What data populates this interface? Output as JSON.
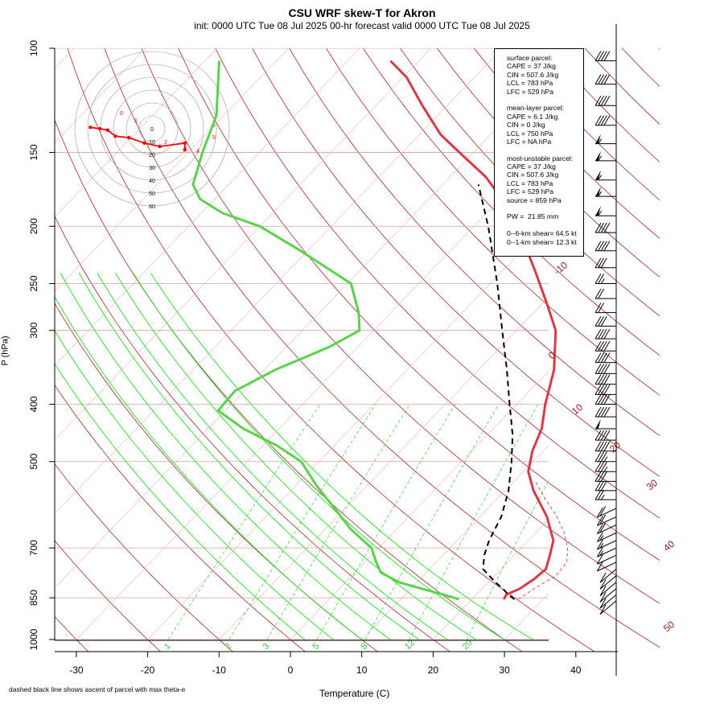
{
  "title": "CSU WRF skew-T for Akron",
  "subtitle": "init: 0000 UTC Tue 08 Jul 2025     00-hr forecast valid 0000 UTC Tue 08 Jul 2025",
  "footnote": "dashed black line shows ascent of parcel with max theta-e",
  "info_box": [
    "surface parcel:",
    "CAPE = 37 J/kg",
    "CIN = 507.6 J/kg",
    "LCL = 783 hPa",
    "LFC = 529 hPa",
    "",
    "mean-layer parcel:",
    "CAPE = 6.1 J/kg",
    "CIN = 0 J/kg",
    "LCL = 750 hPa",
    "LFC = NA hPa",
    "",
    "most-unstable parcel:",
    "CAPE = 37 J/kg",
    "CIN = 507.6 J/kg",
    "LCL = 783 hPa",
    "LFC = 529 hPa",
    "source = 859 hPa",
    "",
    "PW =  21.85 mm",
    "",
    "0--6-km shear= 64.5 kt",
    "0--1-km shear= 12.3 kt"
  ],
  "colors": {
    "temperature": "#d93a48",
    "dewpoint": "#5bd24e",
    "parcel": "#000000",
    "isobar": "#d9a0a0",
    "dry_adiabat": "#a01a1a",
    "moist_adiabat": "#22dd22",
    "mixing_ratio": "#33cc33",
    "isotherm": "#e7b4b4",
    "hodograph": "#ff0000"
  },
  "chart_data": {
    "type": "line",
    "xlabel": "Temperature (C)",
    "ylabel": "P (hPa)",
    "x_ticks": [
      -30,
      -20,
      -10,
      0,
      10,
      20,
      30,
      40
    ],
    "y_ticks": [
      100,
      150,
      200,
      250,
      300,
      400,
      500,
      700,
      850,
      1000
    ],
    "log_pressure_axis": true,
    "skew": true,
    "isotherm_labels": [
      -10,
      0,
      10,
      20,
      30,
      40,
      50
    ],
    "mixing_ratio_labels": [
      1,
      2,
      3,
      5,
      8,
      12,
      20
    ],
    "series": [
      {
        "name": "temperature",
        "points": [
          [
            855,
            24.5
          ],
          [
            840,
            24.2
          ],
          [
            820,
            25.3
          ],
          [
            790,
            26.0
          ],
          [
            760,
            26.3
          ],
          [
            720,
            25.0
          ],
          [
            680,
            23.5
          ],
          [
            620,
            19.4
          ],
          [
            560,
            14.0
          ],
          [
            520,
            10.7
          ],
          [
            480,
            8.5
          ],
          [
            440,
            6.8
          ],
          [
            400,
            4.0
          ],
          [
            350,
            0.6
          ],
          [
            300,
            -4.5
          ],
          [
            270,
            -9.4
          ],
          [
            240,
            -15.0
          ],
          [
            210,
            -21.5
          ],
          [
            185,
            -28.0
          ],
          [
            165,
            -35.0
          ],
          [
            150,
            -42.0
          ],
          [
            140,
            -47.0
          ],
          [
            125,
            -53.5
          ],
          [
            112,
            -59.5
          ],
          [
            105,
            -64.0
          ]
        ]
      },
      {
        "name": "dewpoint",
        "points": [
          [
            855,
            18.2
          ],
          [
            840,
            15.5
          ],
          [
            820,
            11.5
          ],
          [
            800,
            7.5
          ],
          [
            770,
            3.6
          ],
          [
            740,
            1.6
          ],
          [
            700,
            -1.0
          ],
          [
            650,
            -6.5
          ],
          [
            600,
            -11.5
          ],
          [
            550,
            -17.0
          ],
          [
            500,
            -22.5
          ],
          [
            470,
            -28.0
          ],
          [
            440,
            -35.0
          ],
          [
            410,
            -41.0
          ],
          [
            380,
            -41.3
          ],
          [
            350,
            -38.5
          ],
          [
            320,
            -34.0
          ],
          [
            300,
            -32.0
          ],
          [
            280,
            -34.5
          ],
          [
            250,
            -39.5
          ],
          [
            220,
            -51.0
          ],
          [
            200,
            -60.0
          ],
          [
            190,
            -67.0
          ],
          [
            180,
            -72.0
          ],
          [
            170,
            -75.0
          ],
          [
            150,
            -78.0
          ],
          [
            130,
            -81.0
          ],
          [
            105,
            -88.0
          ]
        ]
      },
      {
        "name": "parcel",
        "points": [
          [
            855,
            26.0
          ],
          [
            840,
            24.5
          ],
          [
            820,
            22.9
          ],
          [
            800,
            21.0
          ],
          [
            760,
            17.5
          ],
          [
            720,
            15.8
          ],
          [
            680,
            14.5
          ],
          [
            620,
            13.0
          ],
          [
            560,
            10.5
          ],
          [
            500,
            7.0
          ],
          [
            450,
            3.5
          ],
          [
            400,
            -1.0
          ],
          [
            350,
            -6.0
          ],
          [
            300,
            -12.0
          ],
          [
            250,
            -19.0
          ],
          [
            200,
            -28.0
          ],
          [
            170,
            -35.0
          ]
        ]
      },
      {
        "name": "virtual_temperature",
        "points": [
          [
            855,
            26.5
          ],
          [
            820,
            27.3
          ],
          [
            780,
            28.6
          ],
          [
            740,
            28.3
          ],
          [
            700,
            26.5
          ],
          [
            660,
            24.0
          ],
          [
            620,
            20.8
          ],
          [
            580,
            16.9
          ],
          [
            540,
            13.0
          ]
        ]
      }
    ],
    "hodograph": {
      "ring_labels": [
        0,
        10,
        20,
        30,
        40,
        50,
        60
      ],
      "point_labels": [
        "6",
        "5",
        "4",
        "3",
        "2",
        "1",
        "0"
      ],
      "points": [
        [
          17,
          -31
        ],
        [
          17,
          -21
        ],
        [
          4,
          -26
        ],
        [
          -4,
          -21
        ],
        [
          -12,
          -13
        ],
        [
          -19,
          -11
        ],
        [
          -23,
          -2
        ],
        [
          -27,
          0
        ],
        [
          -32,
          2
        ]
      ]
    },
    "wind_barbs": [
      {
        "p": 105,
        "speed": 40
      },
      {
        "p": 115,
        "speed": 40
      },
      {
        "p": 125,
        "speed": 40
      },
      {
        "p": 135,
        "speed": 40
      },
      {
        "p": 145,
        "speed": 55
      },
      {
        "p": 155,
        "speed": 55
      },
      {
        "p": 167,
        "speed": 55
      },
      {
        "p": 178,
        "speed": 55
      },
      {
        "p": 192,
        "speed": 55
      },
      {
        "p": 205,
        "speed": 40
      },
      {
        "p": 220,
        "speed": 40
      },
      {
        "p": 235,
        "speed": 30
      },
      {
        "p": 250,
        "speed": 25
      },
      {
        "p": 265,
        "speed": 20
      },
      {
        "p": 280,
        "speed": 20
      },
      {
        "p": 295,
        "speed": 30
      },
      {
        "p": 310,
        "speed": 40
      },
      {
        "p": 325,
        "speed": 40
      },
      {
        "p": 340,
        "speed": 40
      },
      {
        "p": 355,
        "speed": 40
      },
      {
        "p": 370,
        "speed": 40
      },
      {
        "p": 385,
        "speed": 40
      },
      {
        "p": 400,
        "speed": 40
      },
      {
        "p": 420,
        "speed": 40
      },
      {
        "p": 440,
        "speed": 50
      },
      {
        "p": 460,
        "speed": 40
      },
      {
        "p": 480,
        "speed": 40
      },
      {
        "p": 500,
        "speed": 35
      },
      {
        "p": 520,
        "speed": 35
      },
      {
        "p": 540,
        "speed": 30
      },
      {
        "p": 560,
        "speed": 30
      },
      {
        "p": 580,
        "speed": 25
      },
      {
        "p": 600,
        "speed": 20
      },
      {
        "p": 620,
        "speed": 20
      },
      {
        "p": 640,
        "speed": 20
      },
      {
        "p": 660,
        "speed": 15
      },
      {
        "p": 680,
        "speed": 15
      },
      {
        "p": 700,
        "speed": 15
      },
      {
        "p": 720,
        "speed": 10
      },
      {
        "p": 740,
        "speed": 10
      },
      {
        "p": 760,
        "speed": 10
      },
      {
        "p": 780,
        "speed": 10
      },
      {
        "p": 800,
        "speed": 10
      },
      {
        "p": 820,
        "speed": 10
      },
      {
        "p": 840,
        "speed": 10
      },
      {
        "p": 860,
        "speed": 10
      }
    ]
  }
}
